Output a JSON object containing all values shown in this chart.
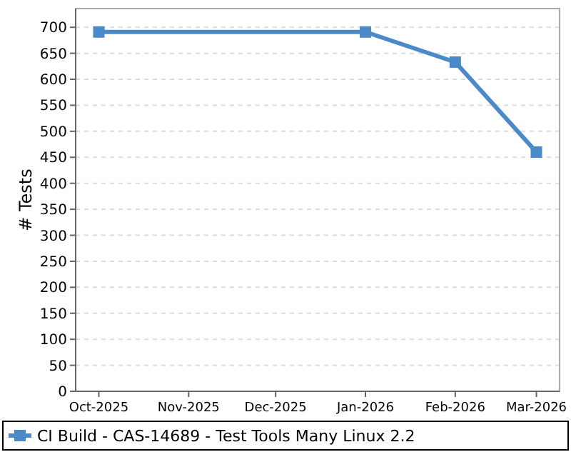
{
  "chart_data": {
    "type": "line",
    "ylabel": "# Tests",
    "x": [
      "2025-10-01",
      "2026-01-01",
      "2026-02-01",
      "2026-03-01"
    ],
    "series": [
      {
        "name": "CI Build - CAS-14689 - Test Tools Many Linux 2.2",
        "color": "#4a8ac9",
        "values": [
          691,
          691,
          633,
          460
        ]
      }
    ],
    "xlim": [
      "2025-09-23",
      "2026-03-09"
    ],
    "xticks": [
      {
        "value": "2025-10-01",
        "label": "Oct-2025"
      },
      {
        "value": "2025-11-01",
        "label": "Nov-2025"
      },
      {
        "value": "2025-12-01",
        "label": "Dec-2025"
      },
      {
        "value": "2026-01-01",
        "label": "Jan-2026"
      },
      {
        "value": "2026-02-01",
        "label": "Feb-2026"
      },
      {
        "value": "2026-03-01",
        "label": "Mar-2026"
      }
    ],
    "ylim": [
      0,
      736
    ],
    "yticks": [
      0,
      50,
      100,
      150,
      200,
      250,
      300,
      350,
      400,
      450,
      500,
      550,
      600,
      650,
      700
    ],
    "grid": "y",
    "legend": "bottom",
    "marker": "square",
    "line_style": "solid"
  }
}
